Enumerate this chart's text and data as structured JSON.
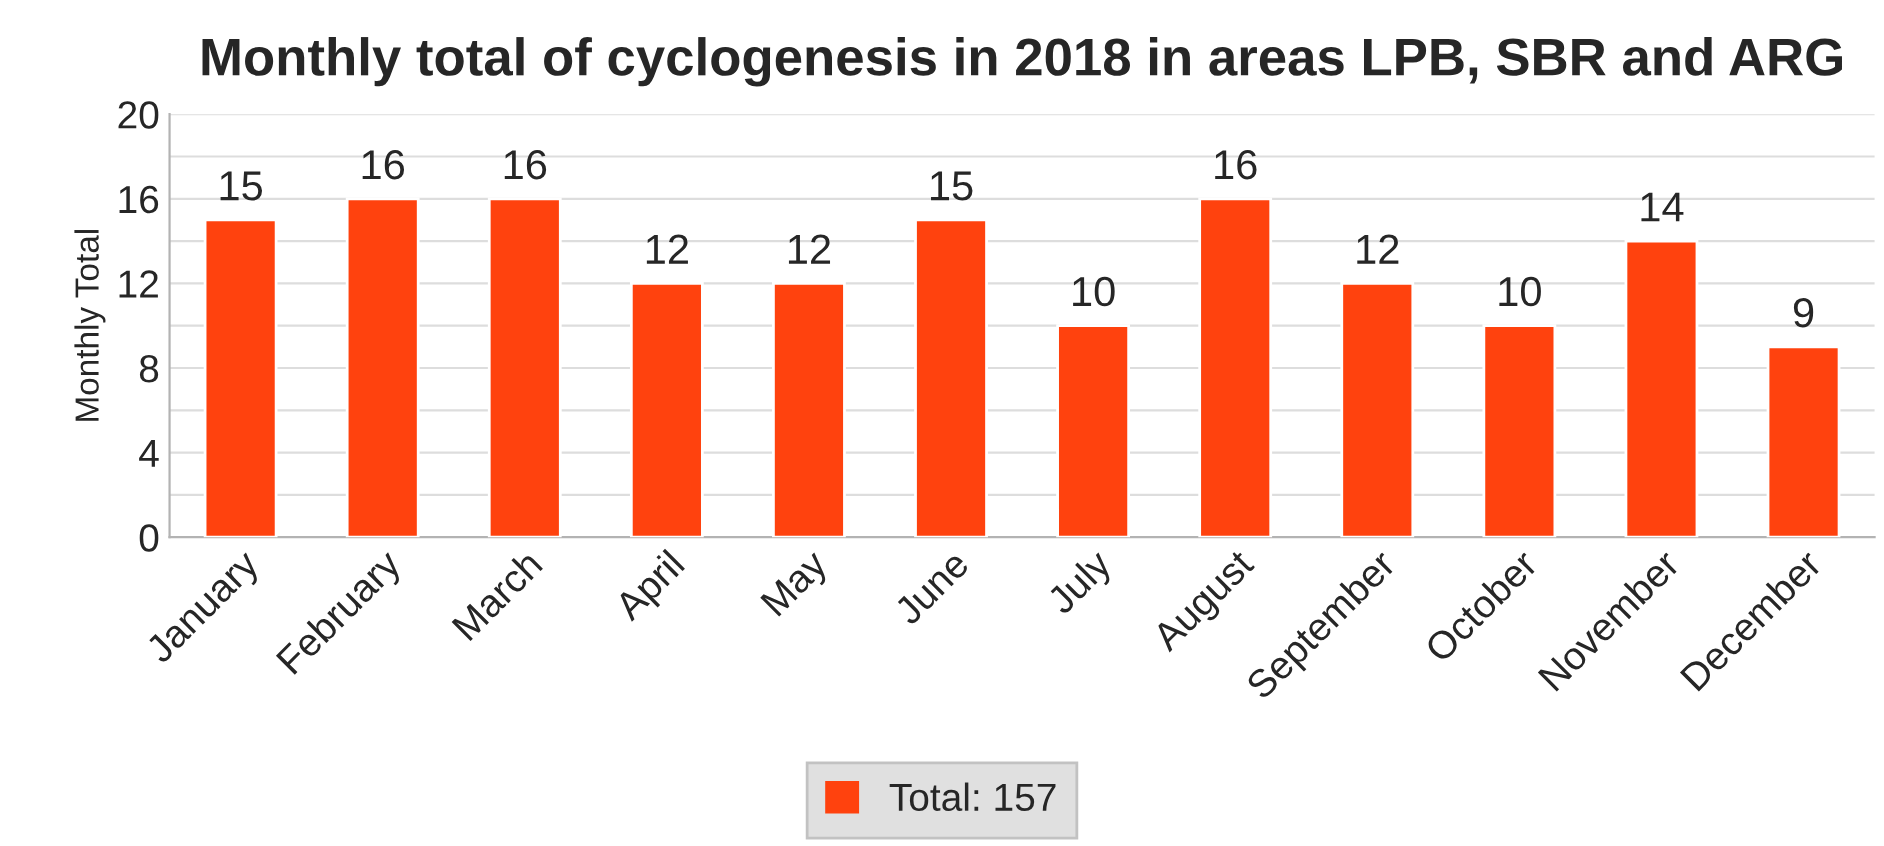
{
  "chart_data": {
    "type": "bar",
    "title": "Monthly total of cyclogenesis in 2018 in areas LPB, SBR and ARG",
    "ylabel": "Monthly Total",
    "categories": [
      "January",
      "February",
      "March",
      "April",
      "May",
      "June",
      "July",
      "August",
      "September",
      "October",
      "November",
      "December"
    ],
    "series": [
      {
        "name": "Total: 157",
        "color": "#ff420e",
        "values": [
          15,
          16,
          16,
          12,
          12,
          15,
          10,
          16,
          12,
          10,
          14,
          9
        ]
      }
    ],
    "ylim": [
      0,
      20
    ],
    "yticks": [
      0,
      {
        "value": 2,
        "label": null
      },
      4,
      {
        "value": 6,
        "label": null
      },
      8,
      {
        "value": 10,
        "label": null
      },
      12,
      {
        "value": 14,
        "label": null
      },
      16,
      {
        "value": 18,
        "label": null
      },
      20
    ],
    "grid": "y",
    "data_labels": true,
    "legend": "bottom"
  }
}
